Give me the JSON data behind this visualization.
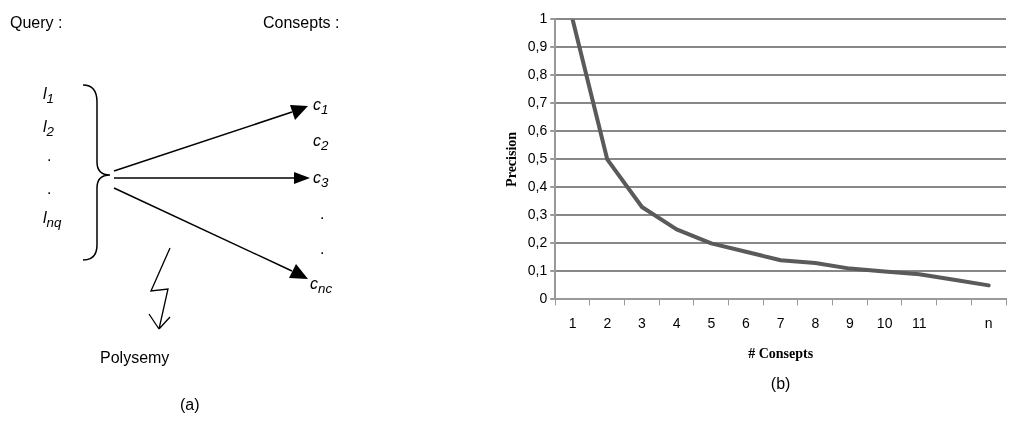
{
  "chart_data": [
    {
      "type": "other",
      "annotations": [
        "Query :",
        "Consepts :",
        "l$_{1}$",
        "l$_{2}$",
        ".",
        ".",
        "l$_{nq}$",
        "c$_{1}$",
        "c$_{2}$",
        "c$_{3}$",
        ".",
        ".",
        "c$_{nc}$",
        "Polysemy",
        "(a)"
      ]
    },
    {
      "type": "line",
      "xlabel": "# Consepts",
      "ylabel": "Precision",
      "annotations": [
        "(b)"
      ],
      "categories": [
        "1",
        "2",
        "3",
        "4",
        "5",
        "6",
        "7",
        "8",
        "9",
        "10",
        "11",
        null,
        "n"
      ],
      "series": [
        {
          "color": "#5a5a5a",
          "values": [
            1,
            0.5,
            0.33,
            0.25,
            0.2,
            0.17,
            0.14,
            0.13,
            0.11,
            0.1,
            0.09,
            0.07,
            0.05
          ]
        }
      ],
      "ylim": [
        0,
        1
      ],
      "yticks": [
        0,
        {
          "value": 0.1,
          "label": "0,1"
        },
        {
          "value": 0.2,
          "label": "0,2"
        },
        {
          "value": 0.3,
          "label": "0,3"
        },
        {
          "value": 0.4,
          "label": "0,4"
        },
        {
          "value": 0.5,
          "label": "0,5"
        },
        {
          "value": 0.6,
          "label": "0,6"
        },
        {
          "value": 0.7,
          "label": "0,7"
        },
        {
          "value": 0.8,
          "label": "0,8"
        },
        {
          "value": 0.9,
          "label": "0,9"
        },
        1
      ],
      "grid": "y",
      "legend": false,
      "marker": "none",
      "line_style": "solid"
    }
  ]
}
